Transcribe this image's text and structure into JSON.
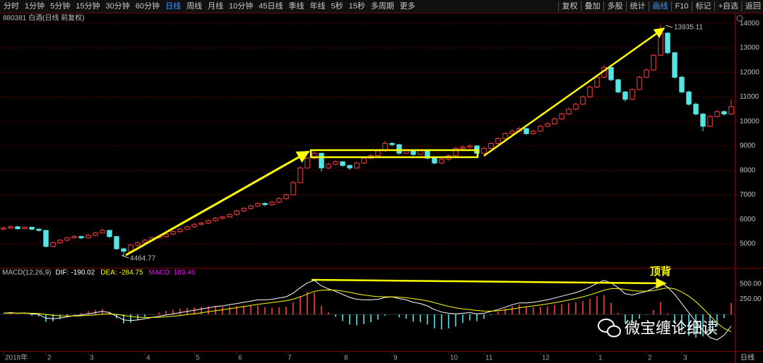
{
  "toolbar": {
    "periods": [
      "分时",
      "1分钟",
      "5分钟",
      "15分钟",
      "30分钟",
      "60分钟",
      "日线",
      "周线",
      "月线",
      "10分钟",
      "45日线",
      "季线",
      "年线",
      "5秒",
      "15秒",
      "多周期",
      "更多"
    ],
    "tools": [
      "复权",
      "叠加",
      "多股",
      "统计",
      "画线",
      "F10",
      "标记",
      "+自选",
      "返回"
    ]
  },
  "chart_data": [
    {
      "type": "candlestick",
      "title": "880381 白酒(日线 前复权)",
      "ohlc": [
        [
          5600,
          5720,
          5560,
          5650
        ],
        [
          5650,
          5760,
          5620,
          5700
        ],
        [
          5700,
          5730,
          5580,
          5620
        ],
        [
          5620,
          5720,
          5590,
          5680
        ],
        [
          5680,
          5700,
          5560,
          5600
        ],
        [
          5600,
          5640,
          5500,
          5550
        ],
        [
          5550,
          5560,
          4850,
          4900
        ],
        [
          4900,
          5100,
          4870,
          5050
        ],
        [
          5050,
          5200,
          5000,
          5150
        ],
        [
          5150,
          5300,
          5100,
          5250
        ],
        [
          5250,
          5360,
          5220,
          5300
        ],
        [
          5300,
          5340,
          5190,
          5250
        ],
        [
          5250,
          5400,
          5220,
          5350
        ],
        [
          5350,
          5500,
          5310,
          5450
        ],
        [
          5450,
          5620,
          5420,
          5550
        ],
        [
          5550,
          5580,
          5250,
          5300
        ],
        [
          5300,
          5330,
          4760,
          4800
        ],
        [
          4800,
          4850,
          4464.77,
          4700
        ],
        [
          4700,
          5000,
          4660,
          4950
        ],
        [
          4950,
          5100,
          4900,
          5050
        ],
        [
          5050,
          5200,
          5000,
          5150
        ],
        [
          5150,
          5300,
          5100,
          5250
        ],
        [
          5250,
          5350,
          5200,
          5300
        ],
        [
          5300,
          5450,
          5260,
          5400
        ],
        [
          5400,
          5550,
          5360,
          5500
        ],
        [
          5500,
          5650,
          5460,
          5600
        ],
        [
          5600,
          5750,
          5560,
          5700
        ],
        [
          5700,
          5850,
          5660,
          5800
        ],
        [
          5800,
          5900,
          5740,
          5850
        ],
        [
          5850,
          6000,
          5800,
          5950
        ],
        [
          5950,
          6100,
          5900,
          6050
        ],
        [
          6050,
          6160,
          6000,
          6100
        ],
        [
          6100,
          6250,
          6060,
          6200
        ],
        [
          6200,
          6400,
          6150,
          6350
        ],
        [
          6350,
          6500,
          6300,
          6450
        ],
        [
          6450,
          6600,
          6400,
          6550
        ],
        [
          6550,
          6700,
          6500,
          6650
        ],
        [
          6650,
          6700,
          6540,
          6600
        ],
        [
          6600,
          6760,
          6560,
          6700
        ],
        [
          6700,
          6900,
          6660,
          6850
        ],
        [
          6850,
          7060,
          6800,
          7000
        ],
        [
          7000,
          7560,
          6980,
          7500
        ],
        [
          7500,
          8160,
          7480,
          8100
        ],
        [
          8100,
          8560,
          8060,
          8500
        ],
        [
          8500,
          8780,
          8450,
          8700
        ],
        [
          8700,
          8720,
          7950,
          8100
        ],
        [
          8100,
          8320,
          8050,
          8250
        ],
        [
          8250,
          8420,
          8200,
          8350
        ],
        [
          8350,
          8380,
          8140,
          8200
        ],
        [
          8200,
          8240,
          8020,
          8100
        ],
        [
          8100,
          8350,
          8060,
          8300
        ],
        [
          8300,
          8560,
          8260,
          8500
        ],
        [
          8500,
          8680,
          8460,
          8600
        ],
        [
          8600,
          8860,
          8560,
          8800
        ],
        [
          8800,
          9200,
          8760,
          9100
        ],
        [
          9100,
          9160,
          8980,
          9050
        ],
        [
          9050,
          9080,
          8640,
          8700
        ],
        [
          8700,
          8880,
          8660,
          8800
        ],
        [
          8800,
          8840,
          8600,
          8650
        ],
        [
          8650,
          8860,
          8620,
          8800
        ],
        [
          8800,
          8820,
          8450,
          8500
        ],
        [
          8500,
          8540,
          8240,
          8300
        ],
        [
          8300,
          8500,
          8260,
          8450
        ],
        [
          8450,
          8660,
          8400,
          8600
        ],
        [
          8600,
          8960,
          8560,
          8900
        ],
        [
          8900,
          9020,
          8860,
          8950
        ],
        [
          8950,
          9080,
          8900,
          9000
        ],
        [
          9000,
          9020,
          8620,
          8700
        ],
        [
          8700,
          8960,
          8660,
          8900
        ],
        [
          8900,
          9160,
          8860,
          9100
        ],
        [
          9100,
          9360,
          9060,
          9300
        ],
        [
          9300,
          9560,
          9260,
          9500
        ],
        [
          9500,
          9680,
          9460,
          9600
        ],
        [
          9600,
          9780,
          9560,
          9700
        ],
        [
          9700,
          9740,
          9440,
          9500
        ],
        [
          9500,
          9660,
          9460,
          9600
        ],
        [
          9600,
          9860,
          9560,
          9800
        ],
        [
          9800,
          9960,
          9760,
          9900
        ],
        [
          9900,
          10160,
          9860,
          10100
        ],
        [
          10100,
          10360,
          10060,
          10300
        ],
        [
          10300,
          10560,
          10260,
          10500
        ],
        [
          10500,
          10760,
          10460,
          10700
        ],
        [
          10700,
          11060,
          10660,
          11000
        ],
        [
          11000,
          11460,
          10960,
          11400
        ],
        [
          11400,
          11860,
          11360,
          11800
        ],
        [
          11800,
          12300,
          11760,
          12200
        ],
        [
          12200,
          12240,
          11640,
          11700
        ],
        [
          11700,
          11740,
          11140,
          11200
        ],
        [
          11200,
          11240,
          10800,
          10900
        ],
        [
          10900,
          11360,
          10860,
          11300
        ],
        [
          11300,
          11860,
          11260,
          11800
        ],
        [
          11800,
          12160,
          11760,
          12100
        ],
        [
          12100,
          12760,
          12060,
          12700
        ],
        [
          12700,
          13935.11,
          12660,
          13600
        ],
        [
          13600,
          13640,
          12740,
          12800
        ],
        [
          12800,
          12840,
          11740,
          11800
        ],
        [
          11800,
          11860,
          11140,
          11200
        ],
        [
          11200,
          11260,
          10640,
          10700
        ],
        [
          10700,
          10760,
          10240,
          10300
        ],
        [
          10300,
          10340,
          9600,
          9800
        ],
        [
          9800,
          10260,
          9760,
          10200
        ],
        [
          10200,
          10460,
          10160,
          10400
        ],
        [
          10400,
          10440,
          10240,
          10300
        ],
        [
          10300,
          10900,
          10260,
          10600
        ]
      ],
      "up_color": "#ff3c3c",
      "down_color": "#54e6e6",
      "ylim": [
        4080,
        14320
      ],
      "yticks": [
        5000,
        6000,
        7000,
        8000,
        9000,
        10000,
        11000,
        12000,
        13000,
        14000
      ],
      "xticks": [
        {
          "value": 0,
          "label": "2018年"
        },
        {
          "value": 6,
          "label": "2"
        },
        {
          "value": 12,
          "label": "3"
        },
        {
          "value": 20,
          "label": "4"
        },
        {
          "value": 27,
          "label": "5"
        },
        {
          "value": 33,
          "label": "6"
        },
        {
          "value": 40,
          "label": "7"
        },
        {
          "value": 48,
          "label": "8"
        },
        {
          "value": 55,
          "label": "9"
        },
        {
          "value": 63,
          "label": "10"
        },
        {
          "value": 68,
          "label": "11"
        },
        {
          "value": 76,
          "label": "12"
        },
        {
          "value": 84,
          "label": "1"
        },
        {
          "value": 91,
          "label": "2"
        },
        {
          "value": 96,
          "label": "3"
        }
      ],
      "grid": true
    },
    {
      "type": "macd",
      "title": "MACD(12,26,9)",
      "series": [
        {
          "name": "DIF:",
          "color": "#ffffff",
          "values": [
            20,
            30,
            20,
            25,
            10,
            0,
            -60,
            -70,
            -60,
            -40,
            -20,
            -10,
            10,
            30,
            50,
            30,
            -30,
            -90,
            -100,
            -90,
            -70,
            -50,
            -30,
            -10,
            10,
            30,
            50,
            70,
            90,
            110,
            130,
            140,
            160,
            180,
            200,
            220,
            240,
            240,
            250,
            270,
            290,
            350,
            440,
            520,
            560,
            470,
            420,
            380,
            330,
            280,
            250,
            240,
            240,
            250,
            280,
            290,
            260,
            240,
            200,
            180,
            140,
            80,
            40,
            20,
            10,
            20,
            30,
            10,
            20,
            50,
            80,
            120,
            160,
            190,
            190,
            200,
            220,
            240,
            270,
            300,
            330,
            360,
            400,
            450,
            510,
            560,
            520,
            440,
            340,
            320,
            350,
            380,
            430,
            520,
            450,
            330,
            180,
            30,
            -120,
            -260,
            -380,
            -420,
            -340,
            -190.02
          ]
        },
        {
          "name": "DEA:",
          "color": "#ffff00",
          "values": [
            20,
            22,
            22,
            22,
            20,
            16,
            0,
            -14,
            -23,
            -26,
            -25,
            -22,
            -16,
            -7,
            4,
            9,
            1,
            -17,
            -33,
            -45,
            -50,
            -50,
            -46,
            -39,
            -29,
            -17,
            -3,
            12,
            28,
            44,
            61,
            77,
            94,
            111,
            129,
            147,
            166,
            181,
            195,
            210,
            226,
            251,
            289,
            335,
            380,
            398,
            402,
            398,
            384,
            363,
            340,
            320,
            304,
            293,
            290,
            290,
            284,
            275,
            260,
            244,
            223,
            194,
            163,
            134,
            109,
            91,
            79,
            65,
            56,
            55,
            60,
            72,
            90,
            110,
            126,
            141,
            157,
            174,
            193,
            215,
            238,
            262,
            290,
            322,
            360,
            400,
            424,
            427,
            410,
            392,
            384,
            383,
            393,
            418,
            440,
            420,
            370,
            300,
            210,
            100,
            -20,
            -140,
            -230,
            -284.75
          ]
        },
        {
          "name": "MACD:",
          "color": "#ff00ff",
          "up_color": "#ff3c3c",
          "down_color": "#54e6e6",
          "values": [
            0,
            16,
            -4,
            6,
            -20,
            -32,
            -120,
            -112,
            -74,
            -28,
            10,
            24,
            52,
            74,
            92,
            42,
            -62,
            -146,
            -134,
            -90,
            -40,
            0,
            32,
            58,
            78,
            94,
            106,
            116,
            124,
            132,
            138,
            126,
            132,
            138,
            142,
            146,
            148,
            118,
            110,
            120,
            128,
            198,
            302,
            370,
            360,
            144,
            36,
            -36,
            -108,
            -166,
            -180,
            -160,
            -128,
            -86,
            -20,
            0,
            -48,
            -70,
            -120,
            -128,
            -166,
            -228,
            -246,
            -228,
            -198,
            -142,
            -98,
            -110,
            -72,
            -10,
            40,
            96,
            140,
            160,
            128,
            118,
            126,
            132,
            154,
            170,
            184,
            196,
            220,
            256,
            300,
            320,
            192,
            26,
            -140,
            -144,
            -68,
            -6,
            74,
            204,
            20,
            -150,
            -280,
            -350,
            -380,
            -360,
            -300,
            -200,
            -60,
            189.46
          ]
        }
      ],
      "ylim": [
        -590,
        755
      ],
      "yticks": [
        {
          "value": 250,
          "label": "250.00"
        },
        {
          "value": 500,
          "label": "500.00"
        }
      ]
    }
  ],
  "annotation": "顶背",
  "watermark": "微宝缠论细读",
  "period_label": "日线"
}
